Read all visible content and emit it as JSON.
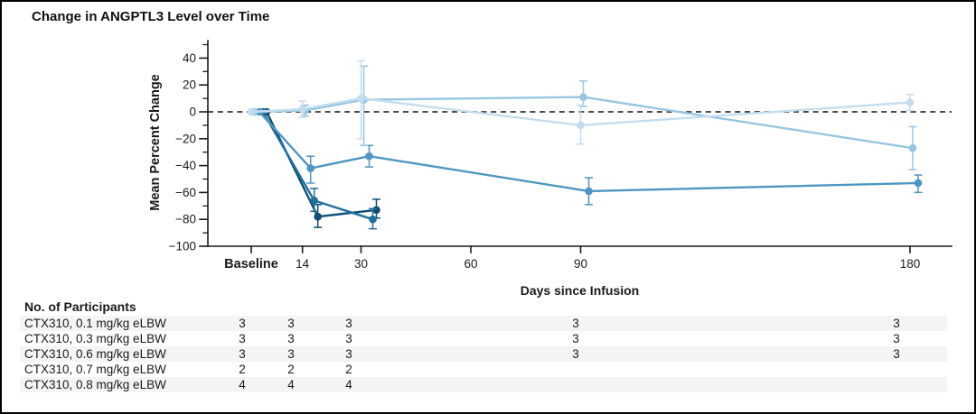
{
  "figure": {
    "title": "Change in ANGPTL3 Level over Time"
  },
  "chart_data": {
    "type": "line",
    "title": "Change in ANGPTL3 Level over Time",
    "xlabel": "Days since Infusion",
    "ylabel": "Mean Percent Change",
    "ylim": [
      -100,
      53
    ],
    "y_major_ticks": [
      40,
      20,
      0,
      -20,
      -40,
      -60,
      -80,
      -100
    ],
    "y_minor_ticks": [
      50,
      30,
      10,
      -10,
      -30,
      -50,
      -70,
      -90
    ],
    "zero_reference_line": {
      "value": 0,
      "style": "dashed",
      "color": "#333333"
    },
    "x_ticks": [
      {
        "label": "Baseline",
        "day": 0,
        "bold": true
      },
      {
        "label": "14",
        "day": 14
      },
      {
        "label": "30",
        "day": 30
      },
      {
        "label": "60",
        "day": 60
      },
      {
        "label": "90",
        "day": 90
      },
      {
        "label": "180",
        "day": 180
      }
    ],
    "series": [
      {
        "name": "CTX310, 0.1 mg/kg eLBW",
        "color": "#c3ddee",
        "points": [
          {
            "day": 0,
            "value": 0
          },
          {
            "day": 14,
            "value": 2,
            "lo": -4,
            "hi": 8
          },
          {
            "day": 30,
            "value": 10,
            "lo": -20,
            "hi": 38
          },
          {
            "day": 90,
            "value": -10,
            "lo": -24,
            "hi": 5
          },
          {
            "day": 180,
            "value": 7,
            "lo": 1,
            "hi": 13
          }
        ]
      },
      {
        "name": "CTX310, 0.3 mg/kg eLBW",
        "color": "#97c6e1",
        "points": [
          {
            "day": 0,
            "value": 0
          },
          {
            "day": 14,
            "value": 1,
            "lo": -3,
            "hi": 5
          },
          {
            "day": 30,
            "value": 9,
            "lo": -25,
            "hi": 34
          },
          {
            "day": 90,
            "value": 11,
            "lo": 4,
            "hi": 23
          },
          {
            "day": 180,
            "value": -27,
            "lo": -43,
            "hi": -11
          }
        ]
      },
      {
        "name": "CTX310, 0.6 mg/kg eLBW",
        "color": "#4e96c2",
        "points": [
          {
            "day": 0,
            "value": 0
          },
          {
            "day": 14,
            "value": -42,
            "lo": -53,
            "hi": -33
          },
          {
            "day": 30,
            "value": -33,
            "lo": -41,
            "hi": -25
          },
          {
            "day": 90,
            "value": -59,
            "lo": -69,
            "hi": -49
          },
          {
            "day": 180,
            "value": -53,
            "lo": -60,
            "hi": -47
          }
        ]
      },
      {
        "name": "CTX310, 0.7 mg/kg eLBW",
        "color": "#20709e",
        "points": [
          {
            "day": 0,
            "value": 0
          },
          {
            "day": 14,
            "value": -66,
            "lo": -74,
            "hi": -57
          },
          {
            "day": 30,
            "value": -80,
            "lo": -87,
            "hi": -72
          }
        ]
      },
      {
        "name": "CTX310, 0.8 mg/kg eLBW",
        "color": "#0d4e74",
        "points": [
          {
            "day": 0,
            "value": 0
          },
          {
            "day": 14,
            "value": -78,
            "lo": -86,
            "hi": -69
          },
          {
            "day": 30,
            "value": -73,
            "lo": -79,
            "hi": -65
          }
        ]
      }
    ]
  },
  "participants_table": {
    "title": "No. of Participants",
    "columns": [
      "Baseline",
      "14",
      "30",
      "90",
      "180"
    ],
    "rows": [
      {
        "label": "CTX310, 0.1 mg/kg eLBW",
        "values": [
          "3",
          "3",
          "3",
          "3",
          "3"
        ]
      },
      {
        "label": "CTX310, 0.3 mg/kg eLBW",
        "values": [
          "3",
          "3",
          "3",
          "3",
          "3"
        ]
      },
      {
        "label": "CTX310, 0.6 mg/kg eLBW",
        "values": [
          "3",
          "3",
          "3",
          "3",
          "3"
        ]
      },
      {
        "label": "CTX310, 0.7 mg/kg eLBW",
        "values": [
          "2",
          "2",
          "2",
          "",
          ""
        ]
      },
      {
        "label": "CTX310, 0.8 mg/kg eLBW",
        "values": [
          "4",
          "4",
          "4",
          "",
          ""
        ]
      }
    ]
  }
}
